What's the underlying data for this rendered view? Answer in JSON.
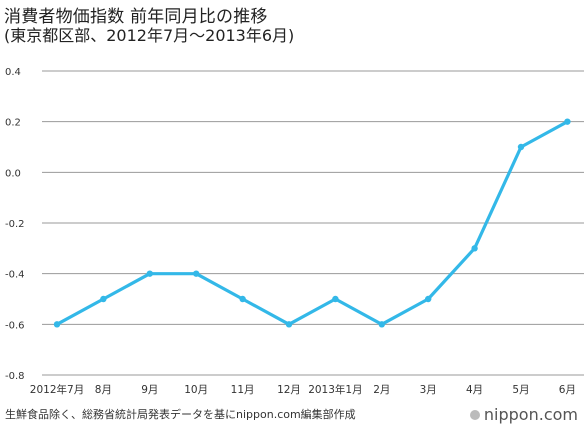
{
  "header": {
    "title_line1": "消費者物価指数 前年同月比の推移",
    "title_line2": "(東京都区部、2012年7月〜2013年6月)"
  },
  "footer": {
    "source": "生鮮食品除く、総務省統計局発表データを基にnippon.com編集部作成",
    "brand": "nippon.com"
  },
  "chart_data": {
    "type": "line",
    "categories": [
      "2012年7月",
      "8月",
      "9月",
      "10月",
      "11月",
      "12月",
      "2013年1月",
      "2月",
      "3月",
      "4月",
      "5月",
      "6月"
    ],
    "series": [
      {
        "values": [
          -0.6,
          -0.5,
          -0.4,
          -0.4,
          -0.5,
          -0.6,
          -0.5,
          -0.6,
          -0.5,
          -0.3,
          0.1,
          0.2
        ]
      }
    ],
    "yticks": [
      "0.4",
      "0.2",
      "0.0",
      "-0.2",
      "-0.4",
      "-0.6",
      "-0.8"
    ],
    "ylim": [
      -0.8,
      0.4
    ],
    "grid": true,
    "line_color": "#33b8e8",
    "grid_color": "#999999"
  }
}
